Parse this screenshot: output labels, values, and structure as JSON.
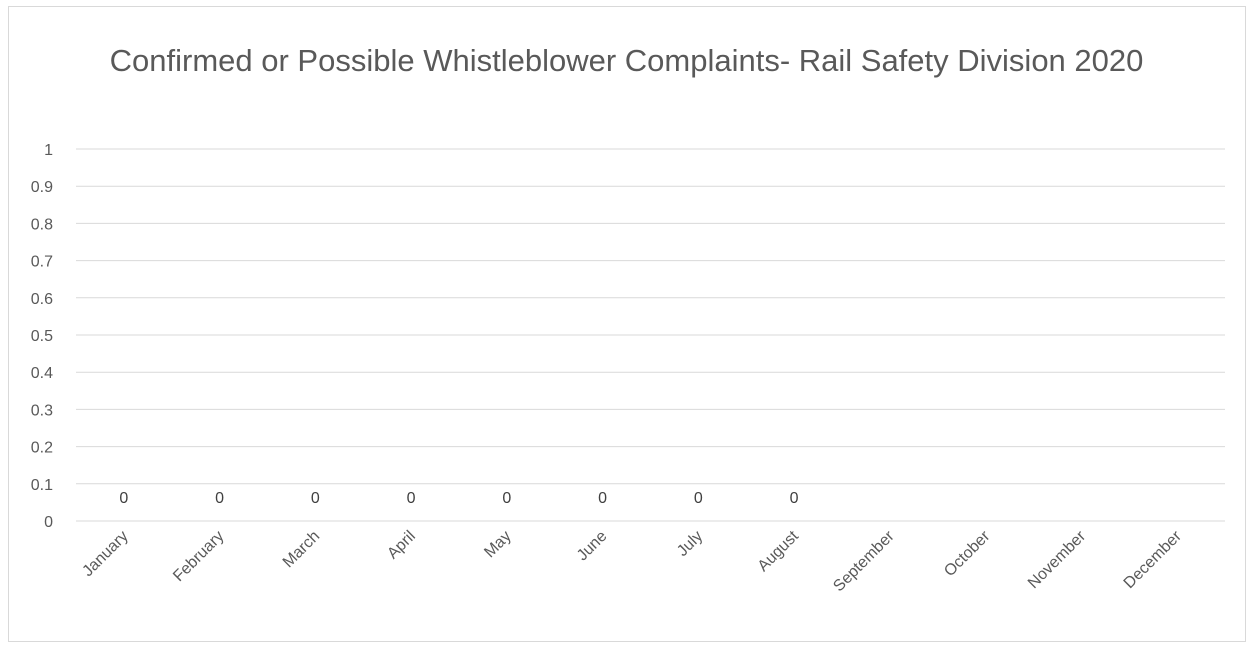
{
  "chart_data": {
    "type": "bar",
    "title": "Confirmed or Possible Whistleblower Complaints- Rail Safety Division 2020",
    "categories": [
      "January",
      "February",
      "March",
      "April",
      "May",
      "June",
      "July",
      "August",
      "September",
      "October",
      "November",
      "December"
    ],
    "values": [
      0,
      0,
      0,
      0,
      0,
      0,
      0,
      0,
      null,
      null,
      null,
      null
    ],
    "data_labels": [
      "0",
      "0",
      "0",
      "0",
      "0",
      "0",
      "0",
      "0",
      "",
      "",
      "",
      ""
    ],
    "y_ticks": [
      "0",
      "0.1",
      "0.2",
      "0.3",
      "0.4",
      "0.5",
      "0.6",
      "0.7",
      "0.8",
      "0.9",
      "1"
    ],
    "xlabel": "",
    "ylabel": "",
    "ylim": [
      0,
      1
    ],
    "grid": true,
    "legend": "none",
    "colors": {
      "gridline": "#d9d9d9",
      "text": "#595959",
      "label": "#404040"
    }
  }
}
